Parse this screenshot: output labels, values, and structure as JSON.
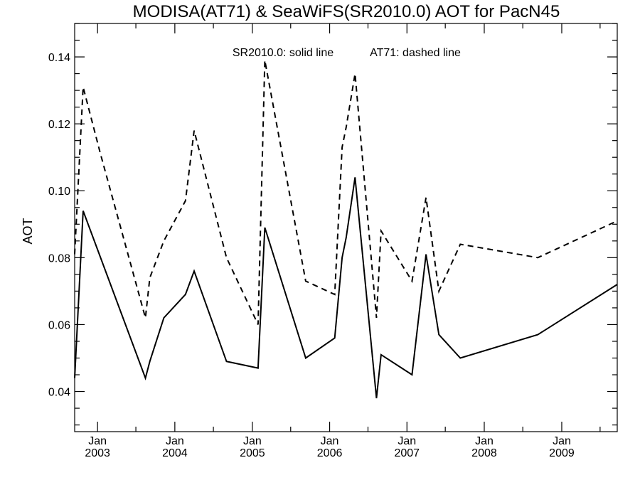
{
  "chart_data": {
    "type": "line",
    "title": "MODISA(AT71) & SeaWiFS(SR2010.0)  AOT for PacN45",
    "ylabel": "AOT",
    "xlabel": "",
    "xlim": [
      "2002-09-15",
      "2009-09-20"
    ],
    "ylim": [
      0.028,
      0.15
    ],
    "grid": false,
    "y_ticks": [
      0.04,
      0.06,
      0.08,
      0.1,
      0.12,
      0.14
    ],
    "y_tick_labels": [
      "0.04",
      "0.06",
      "0.08",
      "0.10",
      "0.12",
      "0.14"
    ],
    "x_ticks": [
      "2003-01-01",
      "2004-01-01",
      "2005-01-01",
      "2006-01-01",
      "2007-01-01",
      "2008-01-01",
      "2009-01-01"
    ],
    "x_tick_labels": [
      {
        "month": "Jan",
        "year": "2003"
      },
      {
        "month": "Jan",
        "year": "2004"
      },
      {
        "month": "Jan",
        "year": "2005"
      },
      {
        "month": "Jan",
        "year": "2006"
      },
      {
        "month": "Jan",
        "year": "2007"
      },
      {
        "month": "Jan",
        "year": "2008"
      },
      {
        "month": "Jan",
        "year": "2009"
      }
    ],
    "annotations": [
      "SR2010.0: solid line",
      "AT71: dashed line"
    ],
    "series": [
      {
        "name": "SR2010.0",
        "style": "solid",
        "color": "#000000",
        "points": [
          [
            "2002-09-15",
            0.044
          ],
          [
            "2002-10-25",
            0.094
          ],
          [
            "2003-08-15",
            0.044
          ],
          [
            "2003-09-05",
            0.049
          ],
          [
            "2003-11-10",
            0.062
          ],
          [
            "2004-02-20",
            0.069
          ],
          [
            "2004-04-01",
            0.076
          ],
          [
            "2004-09-01",
            0.049
          ],
          [
            "2005-01-28",
            0.047
          ],
          [
            "2005-03-01",
            0.089
          ],
          [
            "2005-09-10",
            0.05
          ],
          [
            "2006-01-25",
            0.056
          ],
          [
            "2006-03-01",
            0.08
          ],
          [
            "2006-03-20",
            0.086
          ],
          [
            "2006-05-01",
            0.104
          ],
          [
            "2006-08-10",
            0.038
          ],
          [
            "2006-09-01",
            0.051
          ],
          [
            "2007-01-25",
            0.045
          ],
          [
            "2007-04-01",
            0.081
          ],
          [
            "2007-06-01",
            0.057
          ],
          [
            "2007-09-10",
            0.05
          ],
          [
            "2008-09-10",
            0.057
          ],
          [
            "2009-09-20",
            0.072
          ]
        ]
      },
      {
        "name": "AT71",
        "style": "dashed",
        "color": "#000000",
        "points": [
          [
            "2002-09-15",
            0.081
          ],
          [
            "2002-10-25",
            0.131
          ],
          [
            "2003-01-15",
            0.111
          ],
          [
            "2003-08-15",
            0.062
          ],
          [
            "2003-09-05",
            0.074
          ],
          [
            "2003-11-10",
            0.085
          ],
          [
            "2004-02-20",
            0.097
          ],
          [
            "2004-04-01",
            0.118
          ],
          [
            "2004-09-01",
            0.08
          ],
          [
            "2005-01-28",
            0.06
          ],
          [
            "2005-03-01",
            0.139
          ],
          [
            "2005-09-10",
            0.073
          ],
          [
            "2006-01-25",
            0.069
          ],
          [
            "2006-03-01",
            0.113
          ],
          [
            "2006-03-20",
            0.119
          ],
          [
            "2006-05-01",
            0.135
          ],
          [
            "2006-08-10",
            0.062
          ],
          [
            "2006-09-01",
            0.088
          ],
          [
            "2007-01-25",
            0.073
          ],
          [
            "2007-04-01",
            0.098
          ],
          [
            "2007-06-01",
            0.07
          ],
          [
            "2007-09-10",
            0.084
          ],
          [
            "2008-09-10",
            0.08
          ],
          [
            "2009-09-20",
            0.091
          ]
        ]
      }
    ]
  }
}
